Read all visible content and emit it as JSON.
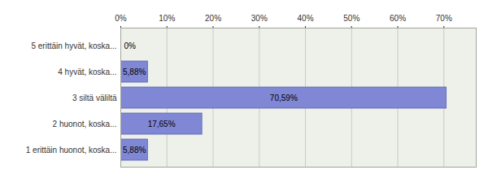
{
  "chart_data": {
    "type": "bar",
    "orientation": "horizontal",
    "categories": [
      "5 erittäin hyvät, koska...",
      "4 hyvät, koska...",
      "3 siltä väliltä",
      "2 huonot, koska...",
      "1 erittäin huonot, koska..."
    ],
    "values": [
      0,
      5.88,
      70.59,
      17.65,
      5.88
    ],
    "value_labels": [
      "0%",
      "5,88%",
      "70,59%",
      "17,65%",
      "5,88%"
    ],
    "data_labels": true,
    "color": "#8088d6",
    "xlim": [
      0,
      77
    ],
    "xticks": [
      {
        "value": 0,
        "label": "0%"
      },
      {
        "value": 10,
        "label": "10%"
      },
      {
        "value": 20,
        "label": "20%"
      },
      {
        "value": 30,
        "label": "30%"
      },
      {
        "value": 40,
        "label": "40%"
      },
      {
        "value": 50,
        "label": "50%"
      },
      {
        "value": 60,
        "label": "60%"
      },
      {
        "value": 70,
        "label": "70%"
      }
    ],
    "grid": true
  }
}
